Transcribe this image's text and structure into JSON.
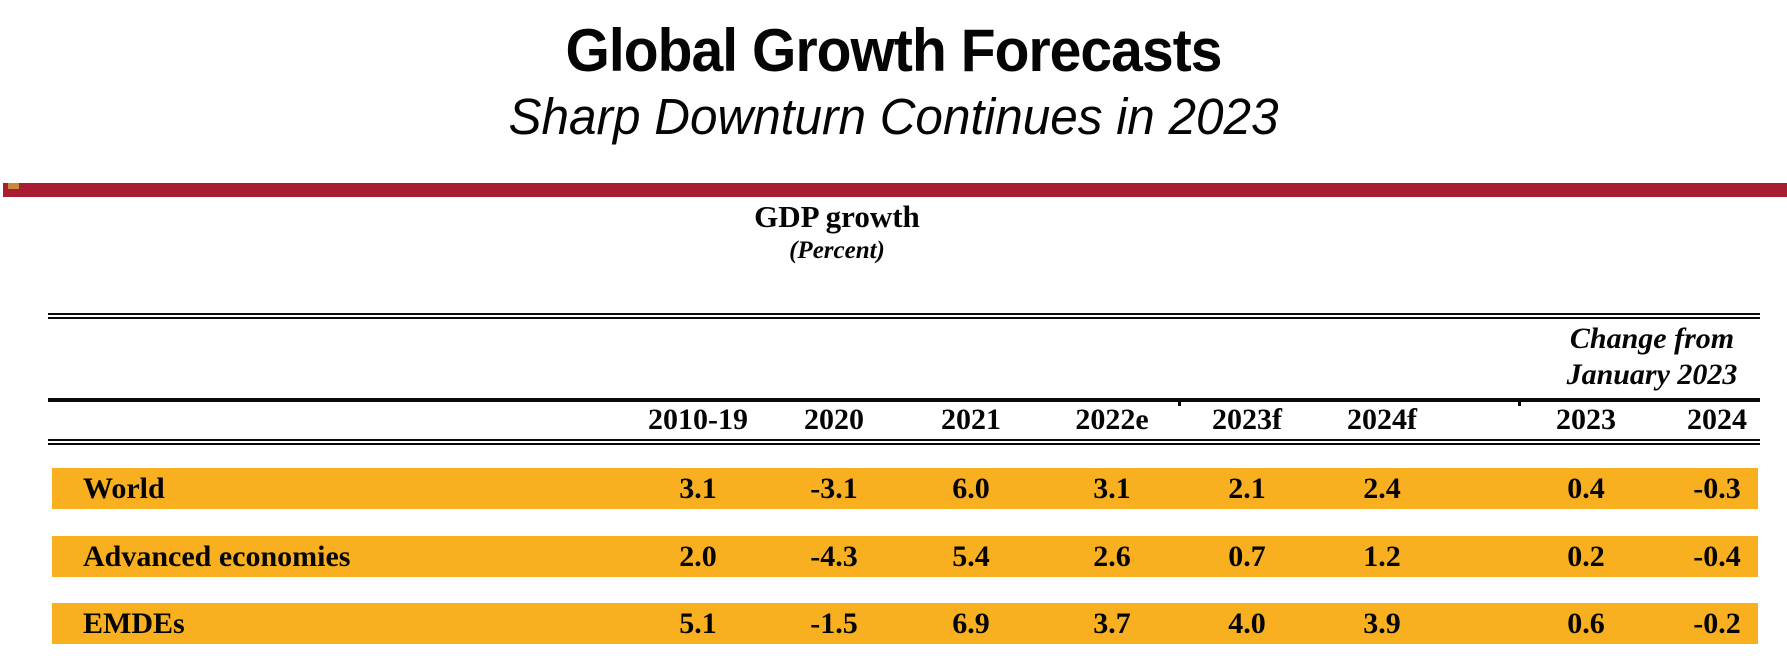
{
  "slide": {
    "title": "Global Growth Forecasts",
    "subtitle": "Sharp Downturn Continues in 2023"
  },
  "table": {
    "heading": "GDP growth",
    "heading_unit": "(Percent)",
    "change_header": [
      "Change from",
      "January 2023"
    ],
    "columns": [
      "2010-19",
      "2020",
      "2021",
      "2022e",
      "2023f",
      "2024f",
      "2023",
      "2024"
    ],
    "rows": [
      {
        "label": "World",
        "values": [
          "3.1",
          "-3.1",
          "6.0",
          "3.1",
          "2.1",
          "2.4",
          "0.4",
          "-0.3"
        ]
      },
      {
        "label": "Advanced economies",
        "values": [
          "2.0",
          "-4.3",
          "5.4",
          "2.6",
          "0.7",
          "1.2",
          "0.2",
          "-0.4"
        ]
      },
      {
        "label": "EMDEs",
        "values": [
          "5.1",
          "-1.5",
          "6.9",
          "3.7",
          "4.0",
          "3.9",
          "0.6",
          "-0.2"
        ]
      }
    ]
  },
  "colors": {
    "accent_bar": "#A91D32",
    "accent_mark": "#C9883F",
    "row_highlight": "#F8AF20",
    "text": "#050505"
  },
  "chart_data": {
    "type": "table",
    "title": "Global Growth Forecasts",
    "subtitle": "Sharp Downturn Continues in 2023",
    "measure": "GDP growth",
    "unit": "Percent",
    "columns": [
      "2010-19",
      "2020",
      "2021",
      "2022e",
      "2023f",
      "2024f",
      "Change from January 2023 - 2023",
      "Change from January 2023 - 2024"
    ],
    "rows": [
      {
        "name": "World",
        "values": [
          3.1,
          -3.1,
          6.0,
          3.1,
          2.1,
          2.4,
          0.4,
          -0.3
        ]
      },
      {
        "name": "Advanced economies",
        "values": [
          2.0,
          -4.3,
          5.4,
          2.6,
          0.7,
          1.2,
          0.2,
          -0.4
        ]
      },
      {
        "name": "EMDEs",
        "values": [
          5.1,
          -1.5,
          6.9,
          3.7,
          4.0,
          3.9,
          0.6,
          -0.2
        ]
      }
    ]
  }
}
